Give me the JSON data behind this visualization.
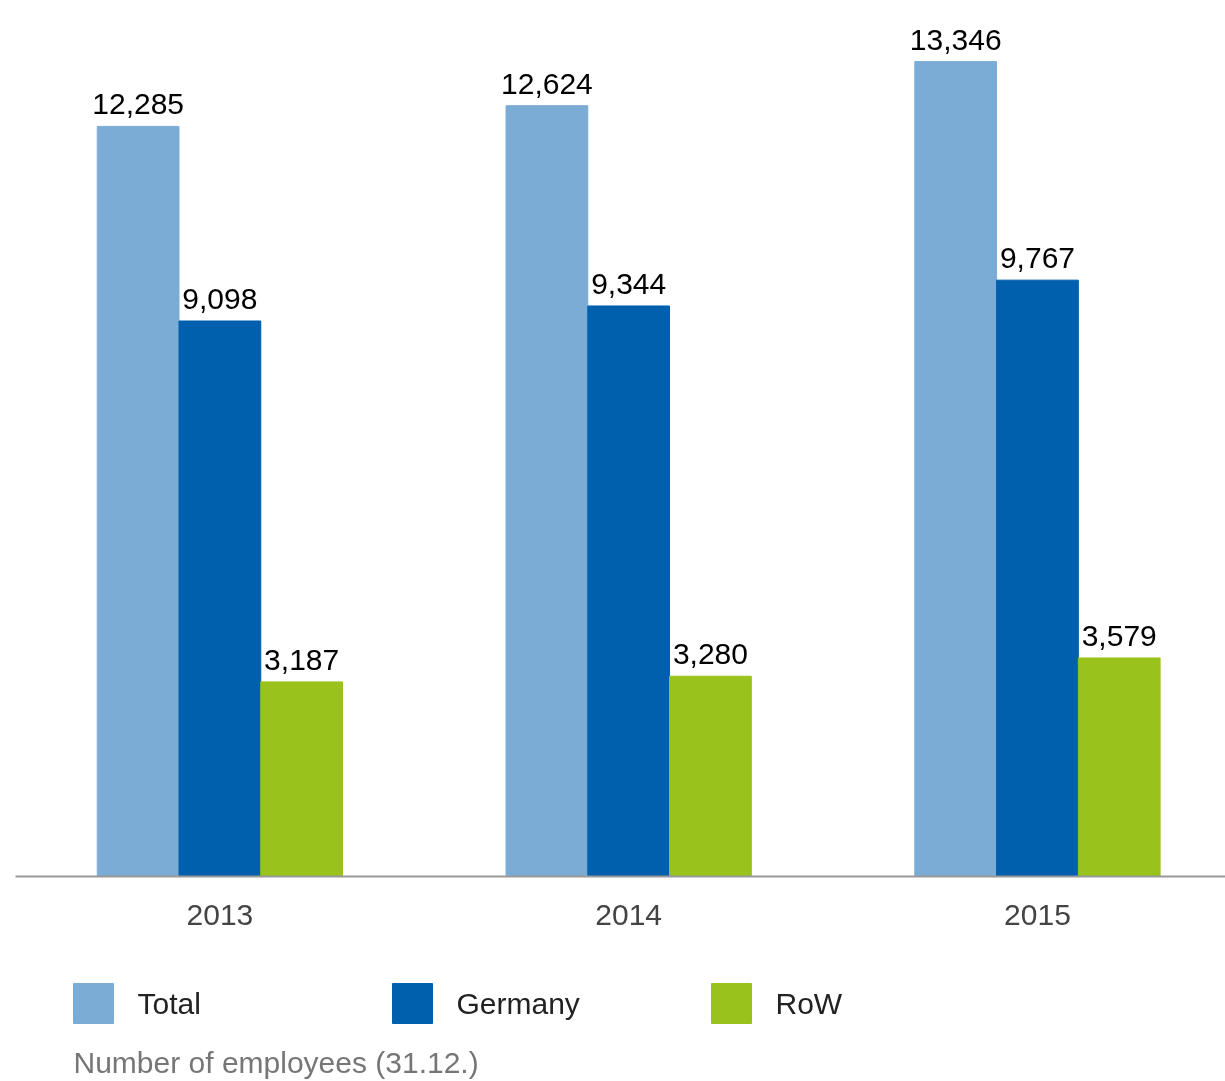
{
  "chart_data": {
    "type": "bar",
    "categories": [
      "2013",
      "2014",
      "2015"
    ],
    "series": [
      {
        "name": "Total",
        "color": "#7bacd5",
        "values": [
          12285,
          12624,
          13346
        ],
        "value_labels": [
          "12,285",
          "12,624",
          "13,346"
        ]
      },
      {
        "name": "Germany",
        "color": "#0060ae",
        "values": [
          9098,
          9344,
          9767
        ],
        "value_labels": [
          "9,098",
          "9,344",
          "9,767"
        ]
      },
      {
        "name": "RoW",
        "color": "#99c21a",
        "values": [
          3187,
          3280,
          3579
        ],
        "value_labels": [
          "3,187",
          "3,280",
          "3,579"
        ]
      }
    ],
    "tick_labels": "x",
    "legend": "bottom",
    "grid": false,
    "annotations": [
      "Number of employees (31.12.)"
    ]
  }
}
